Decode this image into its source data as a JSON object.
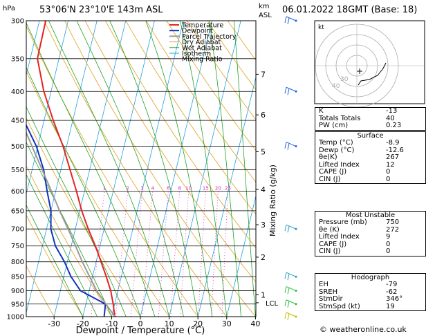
{
  "header": {
    "left_unit": "hPa",
    "location": "53°06'N  23°10'E  143m  ASL",
    "km_unit": "km",
    "asl_unit": "ASL",
    "datetime": "06.01.2022  18GMT  (Base: 18)"
  },
  "chart_data": {
    "type": "skew-t",
    "xlabel": "Dewpoint / Temperature (°C)",
    "ylabel_right": "Mixing Ratio (g/kg)",
    "x_ticks": [
      -30,
      -20,
      -10,
      0,
      10,
      20,
      30,
      40
    ],
    "pressure_levels": [
      300,
      350,
      400,
      450,
      500,
      550,
      600,
      650,
      700,
      750,
      800,
      850,
      900,
      950,
      1000
    ],
    "km_ticks": [
      {
        "km": "1",
        "p": 915
      },
      {
        "km": "2",
        "p": 785
      },
      {
        "km": "3",
        "p": 688
      },
      {
        "km": "4",
        "p": 596
      },
      {
        "km": "5",
        "p": 511
      },
      {
        "km": "6",
        "p": 440
      },
      {
        "km": "7",
        "p": 373
      }
    ],
    "lcl_label": "LCL",
    "lcl_p": 945,
    "mixing_ratio_labels": [
      "1",
      "2",
      "3",
      "4",
      "6",
      "8",
      "10",
      "15",
      "20",
      "25"
    ],
    "mixing_ratio_values": [
      1,
      2,
      3,
      4,
      6,
      8,
      10,
      15,
      20,
      25
    ],
    "legend": [
      "Temperature",
      "Dewpoint",
      "Parcel Trajectory",
      "Dry Adiabat",
      "Wet Adiabat",
      "Isotherm",
      "Mixing Ratio"
    ],
    "series": [
      {
        "name": "Temperature",
        "color": "#e82020",
        "points": [
          [
            1000,
            -8.9
          ],
          [
            950,
            -10.5
          ],
          [
            900,
            -12.5
          ],
          [
            850,
            -15.2
          ],
          [
            800,
            -18.3
          ],
          [
            750,
            -21.6
          ],
          [
            700,
            -25.5
          ],
          [
            650,
            -29.3
          ],
          [
            600,
            -32.8
          ],
          [
            550,
            -36.8
          ],
          [
            500,
            -41.2
          ],
          [
            450,
            -46.8
          ],
          [
            400,
            -52.5
          ],
          [
            350,
            -57.5
          ],
          [
            300,
            -57.8
          ]
        ]
      },
      {
        "name": "Dewpoint",
        "color": "#1030c0",
        "points": [
          [
            1000,
            -12.6
          ],
          [
            950,
            -13.2
          ],
          [
            920,
            -19
          ],
          [
            900,
            -23
          ],
          [
            850,
            -27.5
          ],
          [
            800,
            -31
          ],
          [
            750,
            -35.5
          ],
          [
            700,
            -38.5
          ],
          [
            650,
            -40
          ],
          [
            600,
            -43
          ],
          [
            550,
            -46
          ],
          [
            500,
            -50.5
          ],
          [
            450,
            -57
          ],
          [
            400,
            -63
          ],
          [
            350,
            -66
          ],
          [
            300,
            -67.5
          ]
        ]
      },
      {
        "name": "Parcel Trajectory",
        "color": "#999999",
        "points": [
          [
            1000,
            -8.9
          ],
          [
            950,
            -13.0
          ],
          [
            900,
            -17.4
          ],
          [
            850,
            -21.0
          ],
          [
            800,
            -24.8
          ],
          [
            750,
            -28.5
          ],
          [
            700,
            -32.5
          ],
          [
            650,
            -37
          ],
          [
            600,
            -41.5
          ],
          [
            550,
            -46.5
          ],
          [
            500,
            -52
          ],
          [
            450,
            -58
          ],
          [
            400,
            -64.5
          ],
          [
            350,
            -72
          ],
          [
            300,
            -80
          ]
        ]
      }
    ],
    "wind_barbs": [
      {
        "p": 300,
        "color": "#2060e0"
      },
      {
        "p": 400,
        "color": "#2060e0"
      },
      {
        "p": 500,
        "color": "#2060e0"
      },
      {
        "p": 700,
        "color": "#20a0c0"
      },
      {
        "p": 850,
        "color": "#20a0c0"
      },
      {
        "p": 900,
        "color": "#20c040"
      },
      {
        "p": 950,
        "color": "#20c040"
      },
      {
        "p": 1000,
        "color": "#c0c000"
      }
    ],
    "hodograph": {
      "unit_label": "kt",
      "ring_labels": [
        "40",
        "30"
      ],
      "storm_marker": "+"
    }
  },
  "indices": [
    {
      "label": "K",
      "value": "-13"
    },
    {
      "label": "Totals Totals",
      "value": "40"
    },
    {
      "label": "PW (cm)",
      "value": "0.23"
    }
  ],
  "surface": {
    "title": "Surface",
    "rows": [
      {
        "label": "Temp (°C)",
        "value": "-8.9"
      },
      {
        "label": "Dewp (°C)",
        "value": "-12.6"
      },
      {
        "label": "θe(K)",
        "value": "267"
      },
      {
        "label": "Lifted Index",
        "value": "12"
      },
      {
        "label": "CAPE (J)",
        "value": "0"
      },
      {
        "label": "CIN (J)",
        "value": "0"
      }
    ]
  },
  "most_unstable": {
    "title": "Most Unstable",
    "rows": [
      {
        "label": "Pressure (mb)",
        "value": "750"
      },
      {
        "label": "θe (K)",
        "value": "272"
      },
      {
        "label": "Lifted Index",
        "value": "9"
      },
      {
        "label": "CAPE (J)",
        "value": "0"
      },
      {
        "label": "CIN (J)",
        "value": "0"
      }
    ]
  },
  "hodograph_table": {
    "title": "Hodograph",
    "rows": [
      {
        "label": "EH",
        "value": "-79"
      },
      {
        "label": "SREH",
        "value": "-62"
      },
      {
        "label": "StmDir",
        "value": "346°"
      },
      {
        "label": "StmSpd (kt)",
        "value": "19"
      }
    ]
  },
  "credit": "© weatheronline.co.uk",
  "colors": {
    "dry_adiabat": "#e0a020",
    "wet_adiabat": "#20a020",
    "isotherm": "#20a0e0",
    "mixing_ratio": "#e020c0"
  }
}
